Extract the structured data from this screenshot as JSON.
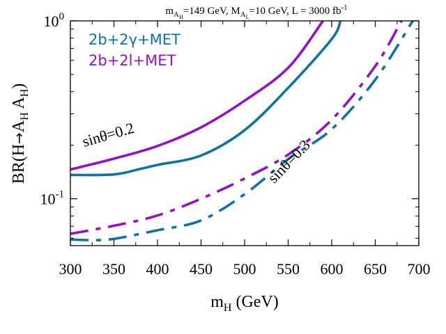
{
  "chart_data": {
    "type": "line",
    "title": {
      "mAH": "m",
      "mAH_sub": "A",
      "mAH_subsub": "H",
      "part1": "=149 GeV, M",
      "MAL_sub": "A",
      "MAL_subsub": "L",
      "part2": "=10 GeV, L = 3000 fb",
      "sup": "-1"
    },
    "xlabel": {
      "main": "m",
      "sub": "H",
      "rest": " (GeV)"
    },
    "ylabel": {
      "pre": "BR(H",
      "arrow": "→",
      "a1": "A",
      "a1_sub": "H",
      "a2": " A",
      "a2_sub": "H",
      "post": ")"
    },
    "xlim": [
      300,
      700
    ],
    "ylim": [
      0.0545,
      1.0
    ],
    "yscale": "log",
    "x_ticks": [
      300,
      350,
      400,
      450,
      500,
      550,
      600,
      650,
      700
    ],
    "x_tick_labels": [
      "300",
      "350",
      "400",
      "450",
      "500",
      "550",
      "600",
      "650",
      "700"
    ],
    "y_ticks": [
      {
        "value": 1.0,
        "base": "10",
        "exp": "0"
      },
      {
        "value": 0.1,
        "base": "10",
        "exp": "-1"
      }
    ],
    "legend": [
      {
        "label": "2b+2γ+MET",
        "color": "#0e72a8"
      },
      {
        "label": "2b+2l+MET",
        "color": "#9410c8"
      }
    ],
    "annotations": [
      {
        "text": "sinθ=0.2",
        "x": 345,
        "y": 0.215,
        "rotate": -16
      },
      {
        "text": "sinθ=0.3",
        "x": 555,
        "y": 0.155,
        "rotate": -46
      }
    ],
    "series": [
      {
        "name": "2b+2l+MET, sinθ=0.2",
        "color": "#9410c8",
        "dash": "solid",
        "x": [
          300,
          350,
          400,
          450,
          500,
          550,
          590
        ],
        "y": [
          0.146,
          0.168,
          0.198,
          0.252,
          0.356,
          0.545,
          1.0
        ]
      },
      {
        "name": "2b+2γ+MET, sinθ=0.2",
        "color": "#0e72a8",
        "dash": "solid",
        "x": [
          300,
          350,
          380,
          400,
          450,
          500,
          550,
          600,
          610
        ],
        "y": [
          0.136,
          0.137,
          0.147,
          0.155,
          0.175,
          0.243,
          0.42,
          0.79,
          1.0
        ]
      },
      {
        "name": "2b+2l+MET, sinθ=0.3",
        "color": "#9410c8",
        "dash": "dashdot",
        "x": [
          300,
          350,
          400,
          450,
          500,
          550,
          600,
          650,
          680
        ],
        "y": [
          0.0635,
          0.0705,
          0.0805,
          0.1,
          0.13,
          0.177,
          0.278,
          0.557,
          1.0
        ]
      },
      {
        "name": "2b+2γ+MET, sinθ=0.3",
        "color": "#0e72a8",
        "dash": "dashdot",
        "x": [
          300,
          325,
          350,
          400,
          450,
          500,
          550,
          600,
          650,
          693
        ],
        "y": [
          0.059,
          0.0585,
          0.0595,
          0.0665,
          0.0755,
          0.106,
          0.167,
          0.246,
          0.467,
          1.0
        ]
      }
    ]
  }
}
